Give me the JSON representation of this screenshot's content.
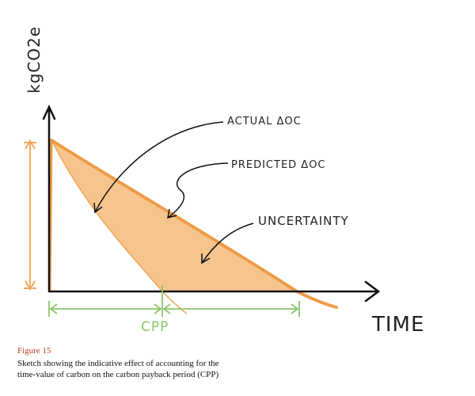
{
  "labels": {
    "y_axis": "kgCO2e",
    "x_axis": "TIME",
    "actual": "ACTUAL ΔOC",
    "predicted": "PREDICTED ΔOC",
    "uncertainty": "UNCERTAINTY",
    "cpp": "CPP"
  },
  "caption": {
    "figure": "Figure 15",
    "lines": [
      "Sketch showing the indicative effect of accounting for the",
      "time-value of carbon on the carbon payback period (CPP)"
    ]
  }
}
